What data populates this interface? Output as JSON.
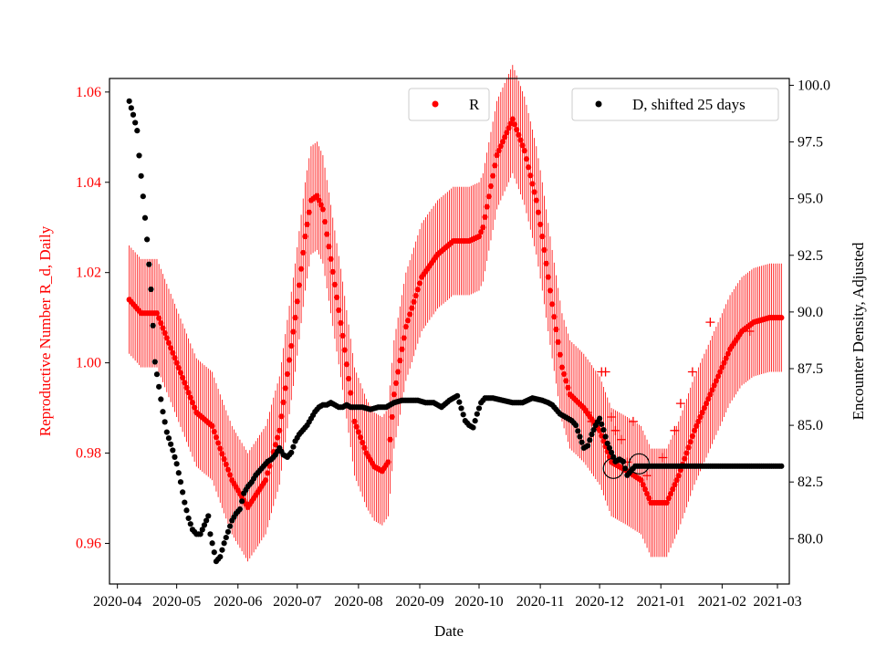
{
  "chart_data": {
    "type": "scatter",
    "title": "",
    "xlabel": "Date",
    "ylabel_left": "Reproductive Number R_d, Daily",
    "ylabel_right": "Encounter Density, Adjusted",
    "x_tick_labels": [
      "2020-04",
      "2020-05",
      "2020-06",
      "2020-07",
      "2020-08",
      "2020-09",
      "2020-10",
      "2020-11",
      "2020-12",
      "2021-01",
      "2021-02",
      "2021-03"
    ],
    "left_tick_labels": [
      "0.96",
      "0.98",
      "1.00",
      "1.02",
      "1.04",
      "1.06"
    ],
    "right_tick_labels": [
      "80.0",
      "82.5",
      "85.0",
      "87.5",
      "90.0",
      "92.5",
      "95.0",
      "97.5",
      "100.0"
    ],
    "ylim_left": [
      0.951,
      1.063
    ],
    "ylim_right": [
      78.0,
      100.3
    ],
    "xlim_days": [
      -4,
      340
    ],
    "colors": {
      "R": "#ff0000",
      "D": "#000000"
    },
    "legend": [
      {
        "label": "R",
        "color": "#ff0000",
        "placement": "top-center"
      },
      {
        "label": "D, shifted 25 days",
        "color": "#000000",
        "placement": "top-right"
      }
    ],
    "series": [
      {
        "name": "R",
        "axis": "left",
        "x_days": [
          6,
          12,
          20,
          30,
          40,
          48,
          52,
          58,
          66,
          75,
          82,
          90,
          95,
          98,
          101,
          104,
          108,
          114,
          120,
          126,
          130,
          134,
          137,
          140,
          146,
          154,
          162,
          170,
          178,
          183,
          185,
          192,
          200,
          206,
          212,
          215,
          220,
          225,
          229,
          236,
          244,
          250,
          258,
          265,
          270,
          274,
          278,
          281,
          284,
          292,
          302,
          310,
          316,
          322,
          330,
          336
        ],
        "values": [
          1.014,
          1.011,
          1.011,
          1.0,
          0.989,
          0.986,
          0.981,
          0.974,
          0.968,
          0.974,
          0.985,
          1.01,
          1.028,
          1.036,
          1.037,
          1.034,
          1.023,
          1.006,
          0.987,
          0.98,
          0.977,
          0.976,
          0.978,
          0.993,
          1.008,
          1.019,
          1.024,
          1.027,
          1.027,
          1.028,
          1.03,
          1.046,
          1.054,
          1.047,
          1.036,
          1.028,
          1.013,
          0.999,
          0.993,
          0.99,
          0.985,
          0.978,
          0.976,
          0.974,
          0.969,
          0.969,
          0.969,
          0.972,
          0.975,
          0.985,
          0.995,
          1.003,
          1.007,
          1.009,
          1.01,
          1.01
        ],
        "error_halfwidth": 0.012,
        "outliers": [
          {
            "x": 238,
            "y": 0.989
          },
          {
            "x": 240,
            "y": 0.987
          },
          {
            "x": 245,
            "y": 0.998
          },
          {
            "x": 247,
            "y": 0.998
          },
          {
            "x": 250,
            "y": 0.988
          },
          {
            "x": 252,
            "y": 0.985
          },
          {
            "x": 255,
            "y": 0.983
          },
          {
            "x": 258,
            "y": 0.978
          },
          {
            "x": 261,
            "y": 0.987
          },
          {
            "x": 268,
            "y": 0.975
          },
          {
            "x": 276,
            "y": 0.979
          },
          {
            "x": 282,
            "y": 0.985
          },
          {
            "x": 285,
            "y": 0.991
          },
          {
            "x": 291,
            "y": 0.998
          },
          {
            "x": 300,
            "y": 1.009
          },
          {
            "x": 320,
            "y": 1.007
          }
        ]
      },
      {
        "name": "D, shifted 25 days",
        "axis": "right",
        "x_days": [
          6,
          8,
          10,
          11,
          13,
          15,
          17,
          19,
          21,
          23,
          25,
          28,
          30,
          32,
          34,
          36,
          38,
          40,
          42,
          44,
          46,
          47,
          48,
          50,
          52,
          54,
          56,
          58,
          60,
          62,
          64,
          66,
          68,
          70,
          72,
          74,
          76,
          78,
          80,
          82,
          84,
          86,
          88,
          90,
          92,
          94,
          96,
          98,
          100,
          102,
          104,
          106,
          108,
          110,
          112,
          114,
          116,
          118,
          120,
          124,
          128,
          132,
          136,
          140,
          144,
          148,
          152,
          156,
          160,
          164,
          168,
          172,
          176,
          178,
          180,
          182,
          184,
          186,
          188,
          190,
          195,
          200,
          205,
          210,
          215,
          218,
          220,
          222,
          224,
          226,
          228,
          230,
          232,
          234,
          236,
          238,
          240,
          242,
          244,
          246,
          248,
          250,
          252,
          254,
          256,
          258,
          262,
          270,
          280,
          290,
          300,
          310,
          320,
          330,
          336
        ],
        "values": [
          99.3,
          98.7,
          98.0,
          96.9,
          95.1,
          93.2,
          91.0,
          87.8,
          86.7,
          85.6,
          84.7,
          83.9,
          83.3,
          82.5,
          81.6,
          80.9,
          80.4,
          80.2,
          80.2,
          80.6,
          81.0,
          80.2,
          79.8,
          79.0,
          79.2,
          79.8,
          80.3,
          80.8,
          81.1,
          81.3,
          82.0,
          82.3,
          82.5,
          82.8,
          83.0,
          83.2,
          83.4,
          83.5,
          83.7,
          84.0,
          83.7,
          83.6,
          83.8,
          84.3,
          84.6,
          84.8,
          85.0,
          85.3,
          85.6,
          85.8,
          85.9,
          85.9,
          86.0,
          85.9,
          85.8,
          85.8,
          85.9,
          85.8,
          85.8,
          85.8,
          85.7,
          85.8,
          85.8,
          86.0,
          86.1,
          86.1,
          86.1,
          86.0,
          86.0,
          85.8,
          86.1,
          86.3,
          85.2,
          85.0,
          84.9,
          85.5,
          86.0,
          86.2,
          86.2,
          86.2,
          86.1,
          86.0,
          86.0,
          86.2,
          86.1,
          86.0,
          85.9,
          85.7,
          85.5,
          85.4,
          85.3,
          85.2,
          85.0,
          84.5,
          84.0,
          84.1,
          84.6,
          85.0,
          85.3,
          84.8,
          84.2,
          83.8,
          83.4,
          83.5,
          83.4,
          82.8,
          83.2,
          83.2,
          83.2,
          83.2,
          83.2,
          83.2,
          83.2,
          83.2,
          83.2
        ],
        "open_markers": [
          {
            "x": 251,
            "y": 83.1
          },
          {
            "x": 264,
            "y": 83.3
          }
        ]
      }
    ]
  }
}
